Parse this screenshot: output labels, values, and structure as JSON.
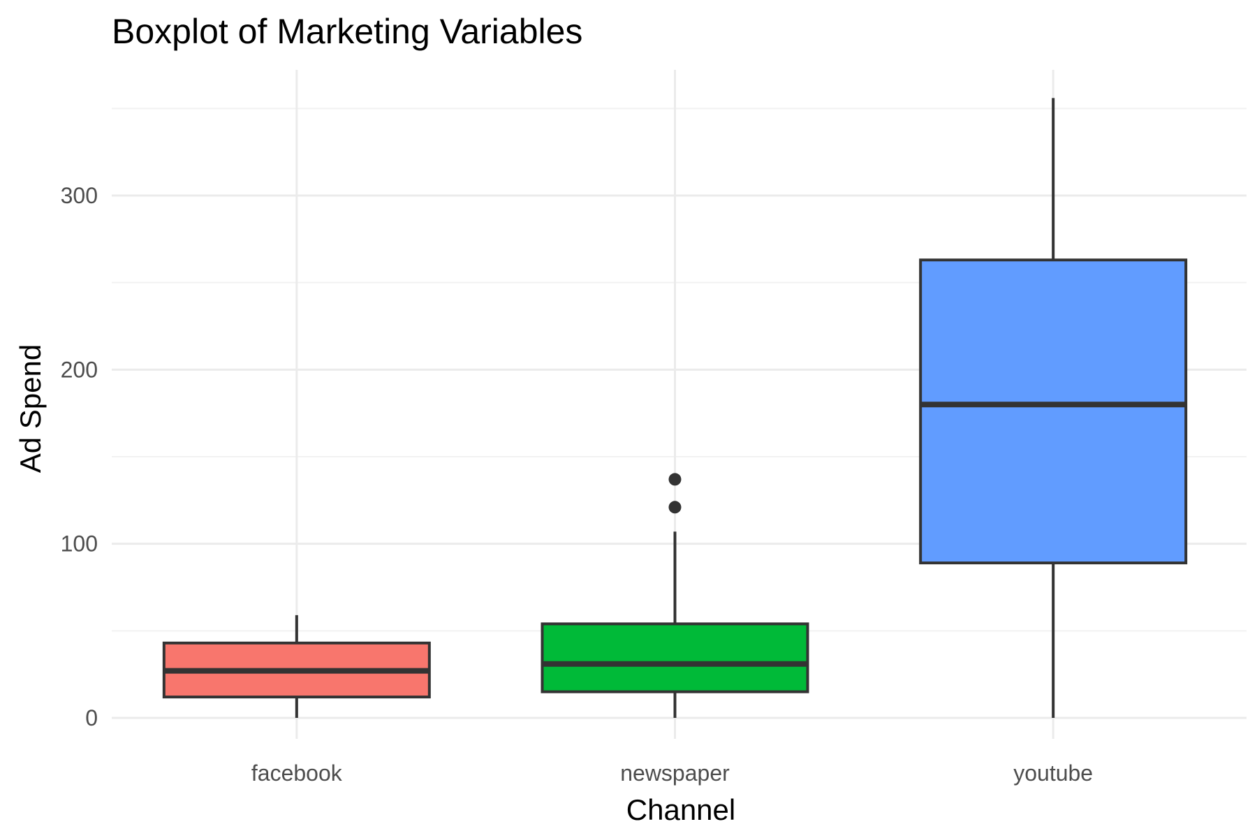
{
  "chart_data": {
    "type": "boxplot",
    "title": "Boxplot of Marketing Variables",
    "xlabel": "Channel",
    "ylabel": "Ad Spend",
    "ylim": [
      -15,
      360
    ],
    "yticks": [
      0,
      100,
      200,
      300
    ],
    "grid": true,
    "legend": "none",
    "categories": [
      "facebook",
      "newspaper",
      "youtube"
    ],
    "series": [
      {
        "category": "facebook",
        "min": 0,
        "q1": 12,
        "median": 27,
        "q3": 43,
        "max": 59,
        "outliers": [],
        "color": "#F8766D"
      },
      {
        "category": "newspaper",
        "min": 0,
        "q1": 15,
        "median": 31,
        "q3": 54,
        "max": 107,
        "outliers": [
          121,
          137
        ],
        "color": "#00BA38"
      },
      {
        "category": "youtube",
        "min": 0,
        "q1": 89,
        "median": 180,
        "q3": 263,
        "max": 356,
        "outliers": [],
        "color": "#619CFF"
      }
    ]
  }
}
